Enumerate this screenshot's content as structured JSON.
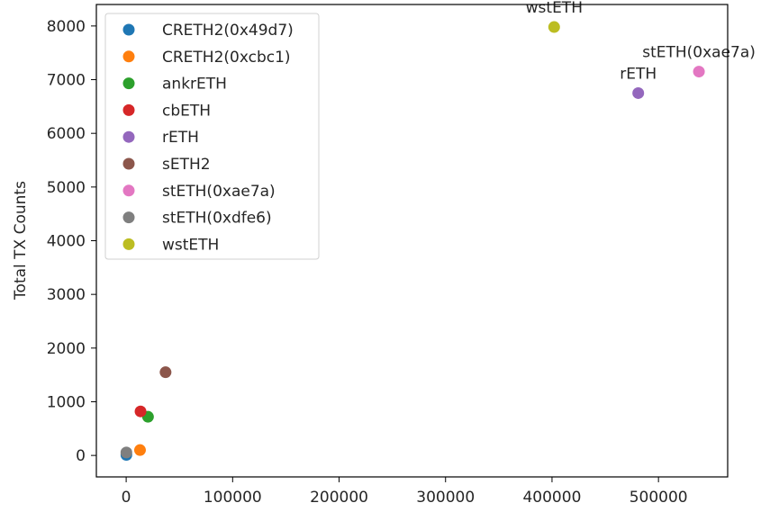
{
  "chart_data": {
    "type": "scatter",
    "title": "",
    "xlabel": "",
    "ylabel": "Total TX Counts",
    "xlim": [
      -28000,
      565000
    ],
    "ylim": [
      -400,
      8400
    ],
    "xticks": [
      0,
      100000,
      200000,
      300000,
      400000,
      500000
    ],
    "yticks": [
      0,
      1000,
      2000,
      3000,
      4000,
      5000,
      6000,
      7000,
      8000
    ],
    "grid": false,
    "legend_position": "top-left",
    "series": [
      {
        "name": "CRETH2(0x49d7)",
        "color": "#1f77b4",
        "points": [
          {
            "x": 200,
            "y": 10
          }
        ]
      },
      {
        "name": "CRETH2(0xcbc1)",
        "color": "#ff7f0e",
        "points": [
          {
            "x": 13000,
            "y": 100
          }
        ]
      },
      {
        "name": "ankrETH",
        "color": "#2ca02c",
        "points": [
          {
            "x": 20500,
            "y": 720
          }
        ]
      },
      {
        "name": "cbETH",
        "color": "#d62728",
        "points": [
          {
            "x": 13500,
            "y": 820
          }
        ]
      },
      {
        "name": "rETH",
        "color": "#9467bd",
        "points": [
          {
            "x": 481000,
            "y": 6750
          }
        ],
        "annotation": "rETH"
      },
      {
        "name": "sETH2",
        "color": "#8c564b",
        "points": [
          {
            "x": 37000,
            "y": 1550
          }
        ]
      },
      {
        "name": "stETH(0xae7a)",
        "color": "#e377c2",
        "points": [
          {
            "x": 538000,
            "y": 7150
          }
        ],
        "annotation": "stETH(0xae7a)"
      },
      {
        "name": "stETH(0xdfe6)",
        "color": "#7f7f7f",
        "points": [
          {
            "x": 200,
            "y": 55
          }
        ]
      },
      {
        "name": "wstETH",
        "color": "#bcbd22",
        "points": [
          {
            "x": 402000,
            "y": 7980
          }
        ],
        "annotation": "wstETH"
      }
    ]
  }
}
